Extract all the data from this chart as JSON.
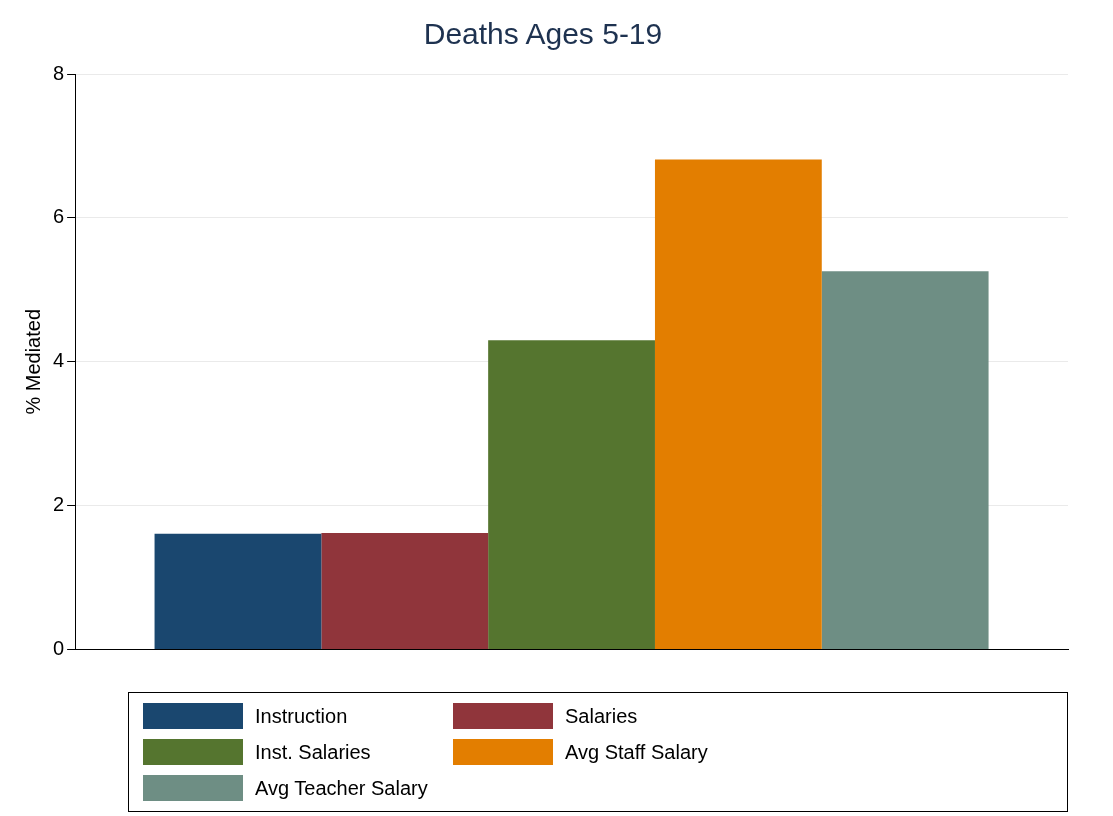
{
  "chart_data": {
    "type": "bar",
    "title": "Deaths Ages 5-19",
    "ylabel": "% Mediated",
    "categories": [
      null
    ],
    "series": [
      {
        "name": "Instruction",
        "color": "#1a476f",
        "values": [
          1.61
        ]
      },
      {
        "name": "Salaries",
        "color": "#90353b",
        "values": [
          1.62
        ]
      },
      {
        "name": "Inst. Salaries",
        "color": "#55752f",
        "values": [
          4.3
        ]
      },
      {
        "name": "Avg Staff Salary",
        "color": "#e37e00",
        "values": [
          6.81
        ]
      },
      {
        "name": "Avg Teacher Salary",
        "color": "#6e8e84",
        "values": [
          5.26
        ]
      }
    ],
    "ylim": [
      0,
      8
    ],
    "yticks": [
      0,
      2,
      4,
      6,
      8
    ],
    "grid": "y",
    "legend": "bottom"
  }
}
